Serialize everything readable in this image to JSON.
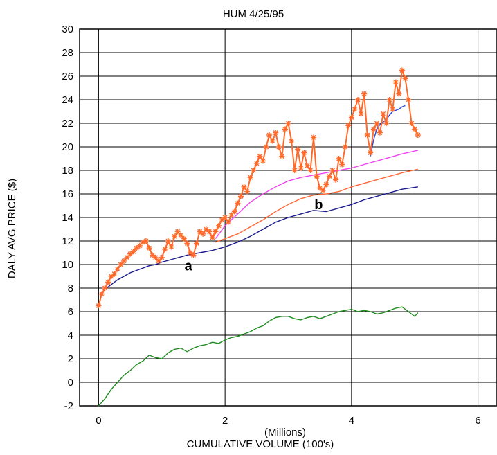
{
  "chart_data": {
    "type": "line",
    "title": "HUM   4/25/95",
    "xlabel": "CUMULATIVE VOLUME (100's)",
    "xlabel_note": "(Millions)",
    "ylabel": "DALY AVG PRICE ($)",
    "xlim": [
      -0.3,
      6.3
    ],
    "ylim": [
      -2,
      30
    ],
    "xticks": [
      0,
      2,
      4,
      6
    ],
    "yticks": [
      -2,
      0,
      2,
      4,
      6,
      8,
      10,
      12,
      14,
      16,
      18,
      20,
      22,
      24,
      26,
      28,
      30
    ],
    "grid": true,
    "annotations": [
      {
        "text": "a",
        "x": 1.42,
        "y": 9.5
      },
      {
        "text": "b",
        "x": 3.48,
        "y": 14.7
      }
    ],
    "series": [
      {
        "style": "price-crosses",
        "color": "#ff6a2a",
        "x": [
          0.0,
          0.05,
          0.1,
          0.15,
          0.2,
          0.25,
          0.3,
          0.35,
          0.4,
          0.45,
          0.5,
          0.55,
          0.6,
          0.65,
          0.7,
          0.75,
          0.8,
          0.85,
          0.9,
          0.95,
          1.0,
          1.05,
          1.1,
          1.15,
          1.2,
          1.25,
          1.3,
          1.35,
          1.4,
          1.45,
          1.5,
          1.55,
          1.6,
          1.65,
          1.7,
          1.75,
          1.8,
          1.85,
          1.9,
          1.95,
          2.0,
          2.05,
          2.1,
          2.15,
          2.2,
          2.25,
          2.3,
          2.35,
          2.4,
          2.45,
          2.5,
          2.55,
          2.6,
          2.65,
          2.7,
          2.75,
          2.8,
          2.85,
          2.9,
          2.95,
          3.0,
          3.05,
          3.1,
          3.15,
          3.2,
          3.25,
          3.3,
          3.35,
          3.4,
          3.45,
          3.5,
          3.55,
          3.6,
          3.65,
          3.7,
          3.75,
          3.8,
          3.85,
          3.9,
          3.95,
          4.0,
          4.05,
          4.1,
          4.15,
          4.2,
          4.25,
          4.3,
          4.35,
          4.4,
          4.45,
          4.5,
          4.55,
          4.6,
          4.65,
          4.7,
          4.75,
          4.8,
          4.85,
          4.9,
          4.95,
          5.0,
          5.05
        ],
        "y": [
          6.5,
          7.5,
          8.0,
          8.5,
          9.0,
          9.2,
          9.6,
          10.0,
          10.3,
          10.6,
          10.9,
          11.1,
          11.4,
          11.6,
          11.9,
          12.0,
          11.4,
          10.8,
          10.6,
          10.3,
          10.6,
          11.3,
          12.0,
          11.5,
          12.4,
          12.8,
          12.5,
          12.2,
          11.8,
          11.0,
          10.8,
          11.8,
          12.8,
          12.6,
          13.0,
          12.8,
          12.3,
          12.8,
          13.3,
          13.8,
          14.0,
          13.6,
          14.2,
          14.5,
          15.2,
          15.8,
          16.6,
          16.2,
          17.4,
          18.0,
          18.6,
          19.2,
          18.8,
          20.0,
          21.0,
          20.5,
          21.2,
          20.0,
          19.2,
          21.5,
          22.0,
          20.5,
          18.0,
          19.8,
          18.2,
          19.5,
          18.4,
          18.0,
          20.8,
          17.5,
          16.5,
          16.3,
          16.8,
          17.5,
          18.0,
          17.2,
          19.0,
          18.5,
          20.0,
          21.8,
          22.5,
          23.2,
          24.0,
          22.8,
          24.5,
          21.0,
          19.5,
          21.5,
          22.0,
          21.2,
          22.8,
          22.0,
          24.0,
          23.2,
          25.5,
          24.5,
          26.5,
          25.8,
          24.0,
          22.0,
          21.5,
          21.0
        ]
      },
      {
        "style": "short-ma",
        "color": "#2b48d8",
        "x": [
          4.3,
          4.35,
          4.4,
          4.45,
          4.5,
          4.55,
          4.6,
          4.65,
          4.7,
          4.75,
          4.8,
          4.85
        ],
        "y": [
          19.2,
          20.6,
          21.5,
          21.9,
          22.1,
          22.3,
          22.7,
          23.0,
          23.1,
          23.2,
          23.4,
          23.5
        ]
      },
      {
        "style": "ma-magenta",
        "color": "#ee44ee",
        "x": [
          1.85,
          2.0,
          2.2,
          2.4,
          2.6,
          2.8,
          3.0,
          3.2,
          3.4,
          3.6,
          3.8,
          4.0,
          4.2,
          4.4,
          4.6,
          4.8,
          5.05
        ],
        "y": [
          12.2,
          13.3,
          14.3,
          15.3,
          16.0,
          16.6,
          17.1,
          17.4,
          17.6,
          17.8,
          18.0,
          18.2,
          18.5,
          18.8,
          19.1,
          19.4,
          19.7
        ]
      },
      {
        "style": "ma-orange",
        "color": "#ff6633",
        "x": [
          1.85,
          2.0,
          2.2,
          2.4,
          2.6,
          2.8,
          3.0,
          3.2,
          3.4,
          3.6,
          3.8,
          4.0,
          4.2,
          4.4,
          4.6,
          4.8,
          5.05
        ],
        "y": [
          11.9,
          12.2,
          12.6,
          13.2,
          13.8,
          14.5,
          15.1,
          15.6,
          15.9,
          16.0,
          16.2,
          16.6,
          16.9,
          17.2,
          17.5,
          17.8,
          18.1
        ]
      },
      {
        "style": "ma-navy",
        "color": "#1a1a8c",
        "x": [
          0.0,
          0.05,
          0.1,
          0.2,
          0.3,
          0.4,
          0.5,
          0.6,
          0.7,
          0.8,
          0.9,
          1.0,
          1.2,
          1.4,
          1.6,
          1.8,
          2.0,
          2.2,
          2.4,
          2.6,
          2.8,
          3.0,
          3.2,
          3.4,
          3.6,
          3.8,
          4.0,
          4.2,
          4.4,
          4.6,
          4.8,
          5.05
        ],
        "y": [
          6.5,
          7.6,
          7.9,
          8.3,
          8.7,
          9.0,
          9.3,
          9.5,
          9.7,
          9.9,
          10.0,
          10.2,
          10.5,
          10.8,
          11.0,
          11.2,
          11.5,
          11.9,
          12.4,
          13.0,
          13.6,
          14.0,
          14.3,
          14.6,
          14.5,
          14.8,
          15.1,
          15.5,
          15.8,
          16.1,
          16.4,
          16.6
        ]
      },
      {
        "style": "lower-green",
        "color": "#1f8a1f",
        "x": [
          0.0,
          0.1,
          0.2,
          0.3,
          0.4,
          0.5,
          0.6,
          0.7,
          0.8,
          0.9,
          1.0,
          1.1,
          1.2,
          1.3,
          1.4,
          1.5,
          1.6,
          1.7,
          1.8,
          1.9,
          2.0,
          2.1,
          2.2,
          2.3,
          2.4,
          2.5,
          2.6,
          2.7,
          2.8,
          2.9,
          3.0,
          3.1,
          3.2,
          3.3,
          3.4,
          3.5,
          3.6,
          3.7,
          3.8,
          3.9,
          4.0,
          4.1,
          4.2,
          4.3,
          4.4,
          4.5,
          4.6,
          4.7,
          4.8,
          4.9,
          5.0,
          5.05
        ],
        "y": [
          -2.0,
          -1.4,
          -0.6,
          0.0,
          0.6,
          1.0,
          1.5,
          1.8,
          2.3,
          2.1,
          2.0,
          2.5,
          2.8,
          2.9,
          2.6,
          2.9,
          3.1,
          3.2,
          3.4,
          3.3,
          3.6,
          3.8,
          3.9,
          4.1,
          4.3,
          4.6,
          4.8,
          5.2,
          5.5,
          5.6,
          5.6,
          5.4,
          5.3,
          5.5,
          5.6,
          5.4,
          5.6,
          5.8,
          6.0,
          6.1,
          6.2,
          6.0,
          6.1,
          6.0,
          5.8,
          5.9,
          6.1,
          6.3,
          6.4,
          6.0,
          5.6,
          5.9
        ]
      }
    ]
  }
}
